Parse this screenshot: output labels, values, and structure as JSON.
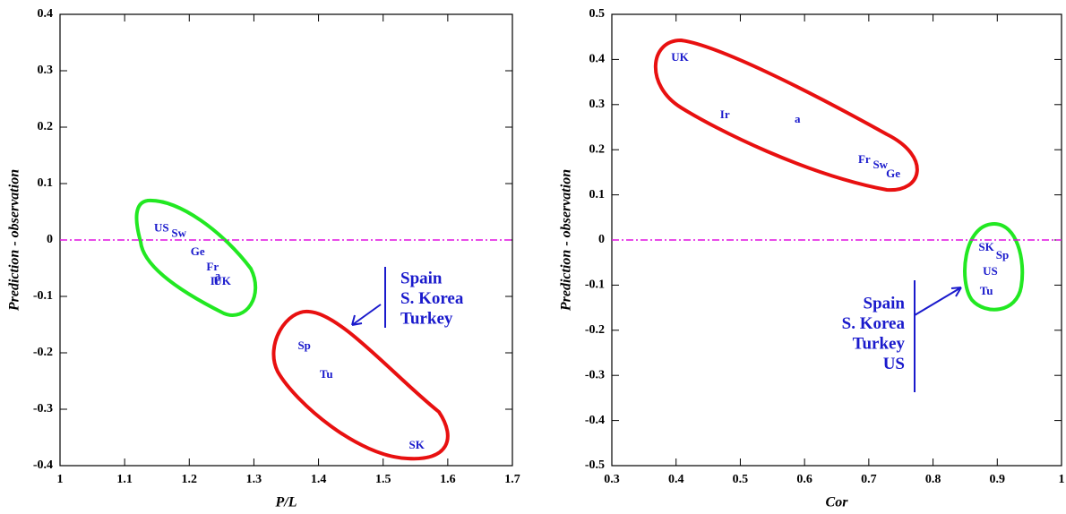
{
  "chart_data": [
    {
      "type": "scatter",
      "x_label": "P/L",
      "y_label": "Prediction - observation",
      "xlim": [
        1,
        1.7
      ],
      "xticks": [
        1,
        1.1,
        1.2,
        1.3,
        1.4,
        1.5,
        1.6,
        1.7
      ],
      "ylim": [
        -0.4,
        0.4
      ],
      "yticks": [
        -0.4,
        -0.3,
        -0.2,
        -0.1,
        0,
        0.1,
        0.2,
        0.3,
        0.4
      ],
      "hline": 0,
      "color": "#1a1acc",
      "labels": [
        "US",
        "Sw",
        "Ge",
        "Fr",
        "a",
        "Ir",
        "UK",
        "Sp",
        "Tu",
        "SK"
      ],
      "x": [
        1.157,
        1.184,
        1.213,
        1.236,
        1.244,
        1.24,
        1.251,
        1.378,
        1.412,
        1.552
      ],
      "y": [
        0.02,
        0.01,
        -0.022,
        -0.049,
        -0.065,
        -0.075,
        -0.075,
        -0.189,
        -0.24,
        -0.365
      ],
      "annotation": [
        "Spain",
        "S. Korea",
        "Turkey"
      ]
    },
    {
      "type": "scatter",
      "x_label": "Cor",
      "y_label": "Prediction - observation",
      "xlim": [
        0.3,
        1
      ],
      "xticks": [
        0.3,
        0.4,
        0.5,
        0.6,
        0.7,
        0.8,
        0.9,
        1
      ],
      "ylim": [
        -0.5,
        0.5
      ],
      "yticks": [
        -0.5,
        -0.4,
        -0.3,
        -0.2,
        -0.1,
        0,
        0.1,
        0.2,
        0.3,
        0.4,
        0.5
      ],
      "hline": 0,
      "color": "#1a1acc",
      "labels": [
        "UK",
        "Ir",
        "a",
        "Fr",
        "Sw",
        "Ge",
        "SK",
        "Sp",
        "US",
        "Tu"
      ],
      "x": [
        0.406,
        0.476,
        0.589,
        0.693,
        0.718,
        0.738,
        0.883,
        0.908,
        0.889,
        0.883
      ],
      "y": [
        0.403,
        0.276,
        0.266,
        0.177,
        0.165,
        0.145,
        -0.018,
        -0.036,
        -0.071,
        -0.115
      ],
      "annotation": [
        "Spain",
        "S. Korea",
        "Turkey",
        "US"
      ]
    }
  ]
}
